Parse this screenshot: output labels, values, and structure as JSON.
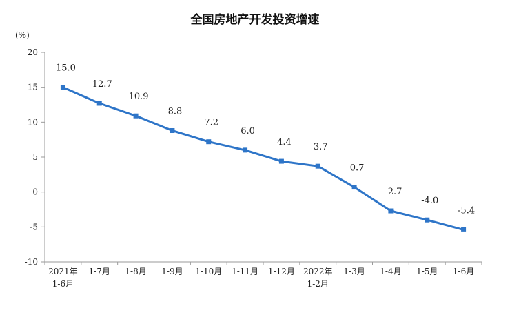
{
  "chart_data": {
    "type": "line",
    "title": "全国房地产开发投资增速",
    "ylabel": "(%)",
    "ylim": [
      -10,
      20
    ],
    "yticks": [
      20,
      15,
      10,
      5,
      0,
      -5,
      -10
    ],
    "categories": [
      [
        "2021年",
        "1-6月"
      ],
      [
        "1-7月"
      ],
      [
        "1-8月"
      ],
      [
        "1-9月"
      ],
      [
        "1-10月"
      ],
      [
        "1-11月"
      ],
      [
        "1-12月"
      ],
      [
        "2022年",
        "1-2月"
      ],
      [
        "1-3月"
      ],
      [
        "1-4月"
      ],
      [
        "1-5月"
      ],
      [
        "1-6月"
      ]
    ],
    "series": [
      {
        "values": [
          15.0,
          12.7,
          10.9,
          8.8,
          7.2,
          6.0,
          4.4,
          3.7,
          0.7,
          -2.7,
          -4.0,
          -5.4
        ],
        "labels": [
          "15.0",
          "12.7",
          "10.9",
          "8.8",
          "7.2",
          "6.0",
          "4.4",
          "3.7",
          "0.7",
          "-2.7",
          "-4.0",
          "-5.4"
        ],
        "color": "#2e75c8"
      }
    ],
    "grid": false,
    "legend": "none"
  }
}
